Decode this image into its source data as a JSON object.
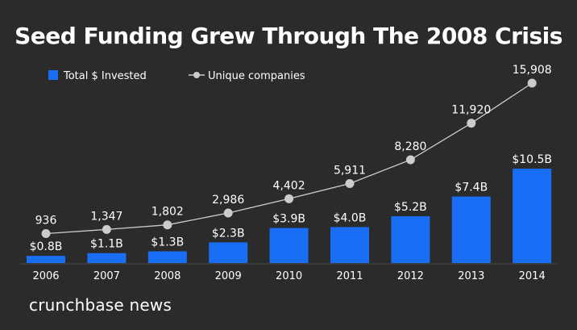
{
  "chart_data": {
    "type": "bar",
    "title": "Seed Funding Grew Through The 2008 Crisis",
    "categories": [
      "2006",
      "2007",
      "2008",
      "2009",
      "2010",
      "2011",
      "2012",
      "2013",
      "2014"
    ],
    "series": [
      {
        "name": "Total $ Invested",
        "type": "bar",
        "values": [
          0.8,
          1.1,
          1.3,
          2.3,
          3.9,
          4.0,
          5.2,
          7.4,
          10.5
        ],
        "labels": [
          "$0.8B",
          "$1.1B",
          "$1.3B",
          "$2.3B",
          "$3.9B",
          "$4.0B",
          "$5.2B",
          "$7.4B",
          "$10.5B"
        ],
        "color": "#1a6ef5"
      },
      {
        "name": "Unique companies",
        "type": "line",
        "values": [
          936,
          1347,
          1802,
          2986,
          4402,
          5911,
          8280,
          11920,
          15908
        ],
        "labels": [
          "936",
          "1,347",
          "1,802",
          "2,986",
          "4,402",
          "5,911",
          "8,280",
          "11,920",
          "15,908"
        ],
        "color": "#cccccc"
      }
    ],
    "xlabel": "",
    "ylabel": "",
    "legend": "top-left",
    "grid": false
  },
  "source": "crunchbase news",
  "colors": {
    "background": "#2b2b2b",
    "bar": "#1a6ef5",
    "line": "#cccccc",
    "axis": "#4a4a4a"
  }
}
